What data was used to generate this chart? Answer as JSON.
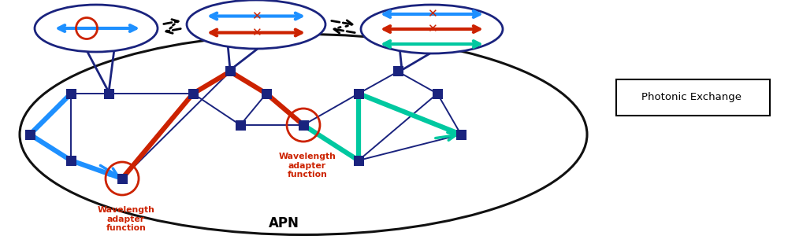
{
  "fig_width": 10.0,
  "fig_height": 3.09,
  "dpi": 100,
  "blue_color": "#1e90ff",
  "red_color": "#cc2200",
  "teal_color": "#00c8a0",
  "navy_color": "#1a237e",
  "black_color": "#111111",
  "waf_color": "#cc2200",
  "waf_label": "Wavelength\nadapter\nfunction",
  "apn_label": "APN",
  "legend_text": "Photonic Exchange"
}
